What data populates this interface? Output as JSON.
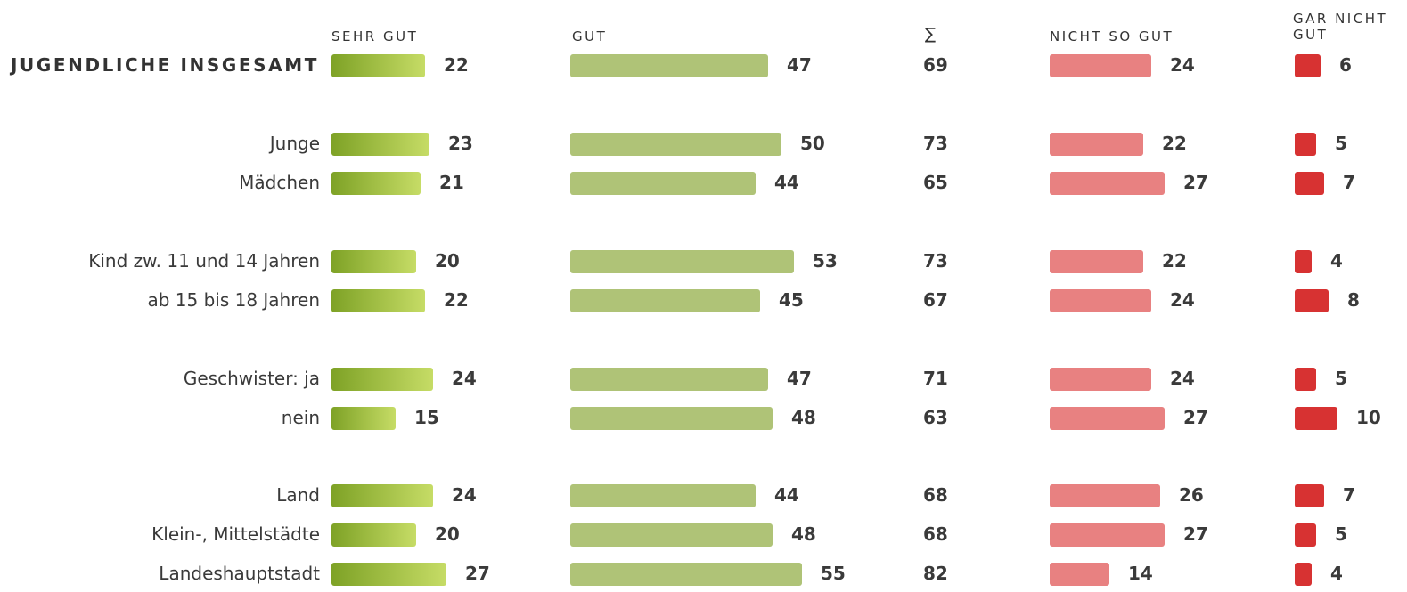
{
  "chart_data": {
    "type": "bar",
    "orientation": "horizontal",
    "layout": "diverging-table",
    "grid": false,
    "legend": "none",
    "columns": [
      {
        "key": "sehr_gut",
        "label": "SEHR GUT",
        "color": "#7ea226",
        "color_end": "#c6dc66",
        "scale_max": 30
      },
      {
        "key": "gut",
        "label": "GUT",
        "color": "#afc377",
        "scale_max": 60
      },
      {
        "key": "sum",
        "label": "∑"
      },
      {
        "key": "nicht_so_gut",
        "label": "NICHT SO GUT",
        "color": "#e88181",
        "scale_max": 30
      },
      {
        "key": "gar_nicht_gut",
        "label": "GAR NICHT\nGUT",
        "color": "#d73232",
        "scale_max": 12
      }
    ],
    "rows": [
      {
        "label": "JUGENDLICHE INSGESAMT",
        "sehr_gut": 22,
        "gut": 47,
        "sum": 69,
        "nicht_so_gut": 24,
        "gar_nicht_gut": 6,
        "emphasis": true
      },
      {
        "label": "Junge",
        "sehr_gut": 23,
        "gut": 50,
        "sum": 73,
        "nicht_so_gut": 22,
        "gar_nicht_gut": 5
      },
      {
        "label": "Mädchen",
        "sehr_gut": 21,
        "gut": 44,
        "sum": 65,
        "nicht_so_gut": 27,
        "gar_nicht_gut": 7
      },
      {
        "label": "Kind zw. 11 und 14 Jahren",
        "sehr_gut": 20,
        "gut": 53,
        "sum": 73,
        "nicht_so_gut": 22,
        "gar_nicht_gut": 4
      },
      {
        "label": "ab 15 bis 18 Jahren",
        "sehr_gut": 22,
        "gut": 45,
        "sum": 67,
        "nicht_so_gut": 24,
        "gar_nicht_gut": 8
      },
      {
        "label": "Geschwister: ja",
        "sehr_gut": 24,
        "gut": 47,
        "sum": 71,
        "nicht_so_gut": 24,
        "gar_nicht_gut": 5
      },
      {
        "label": "nein",
        "sehr_gut": 15,
        "gut": 48,
        "sum": 63,
        "nicht_so_gut": 27,
        "gar_nicht_gut": 10
      },
      {
        "label": "Land",
        "sehr_gut": 24,
        "gut": 44,
        "sum": 68,
        "nicht_so_gut": 26,
        "gar_nicht_gut": 7
      },
      {
        "label": "Klein-, Mittelstädte",
        "sehr_gut": 20,
        "gut": 48,
        "sum": 68,
        "nicht_so_gut": 27,
        "gar_nicht_gut": 5
      },
      {
        "label": "Landeshauptstadt",
        "sehr_gut": 27,
        "gut": 55,
        "sum": 82,
        "nicht_so_gut": 14,
        "gar_nicht_gut": 4
      }
    ]
  }
}
